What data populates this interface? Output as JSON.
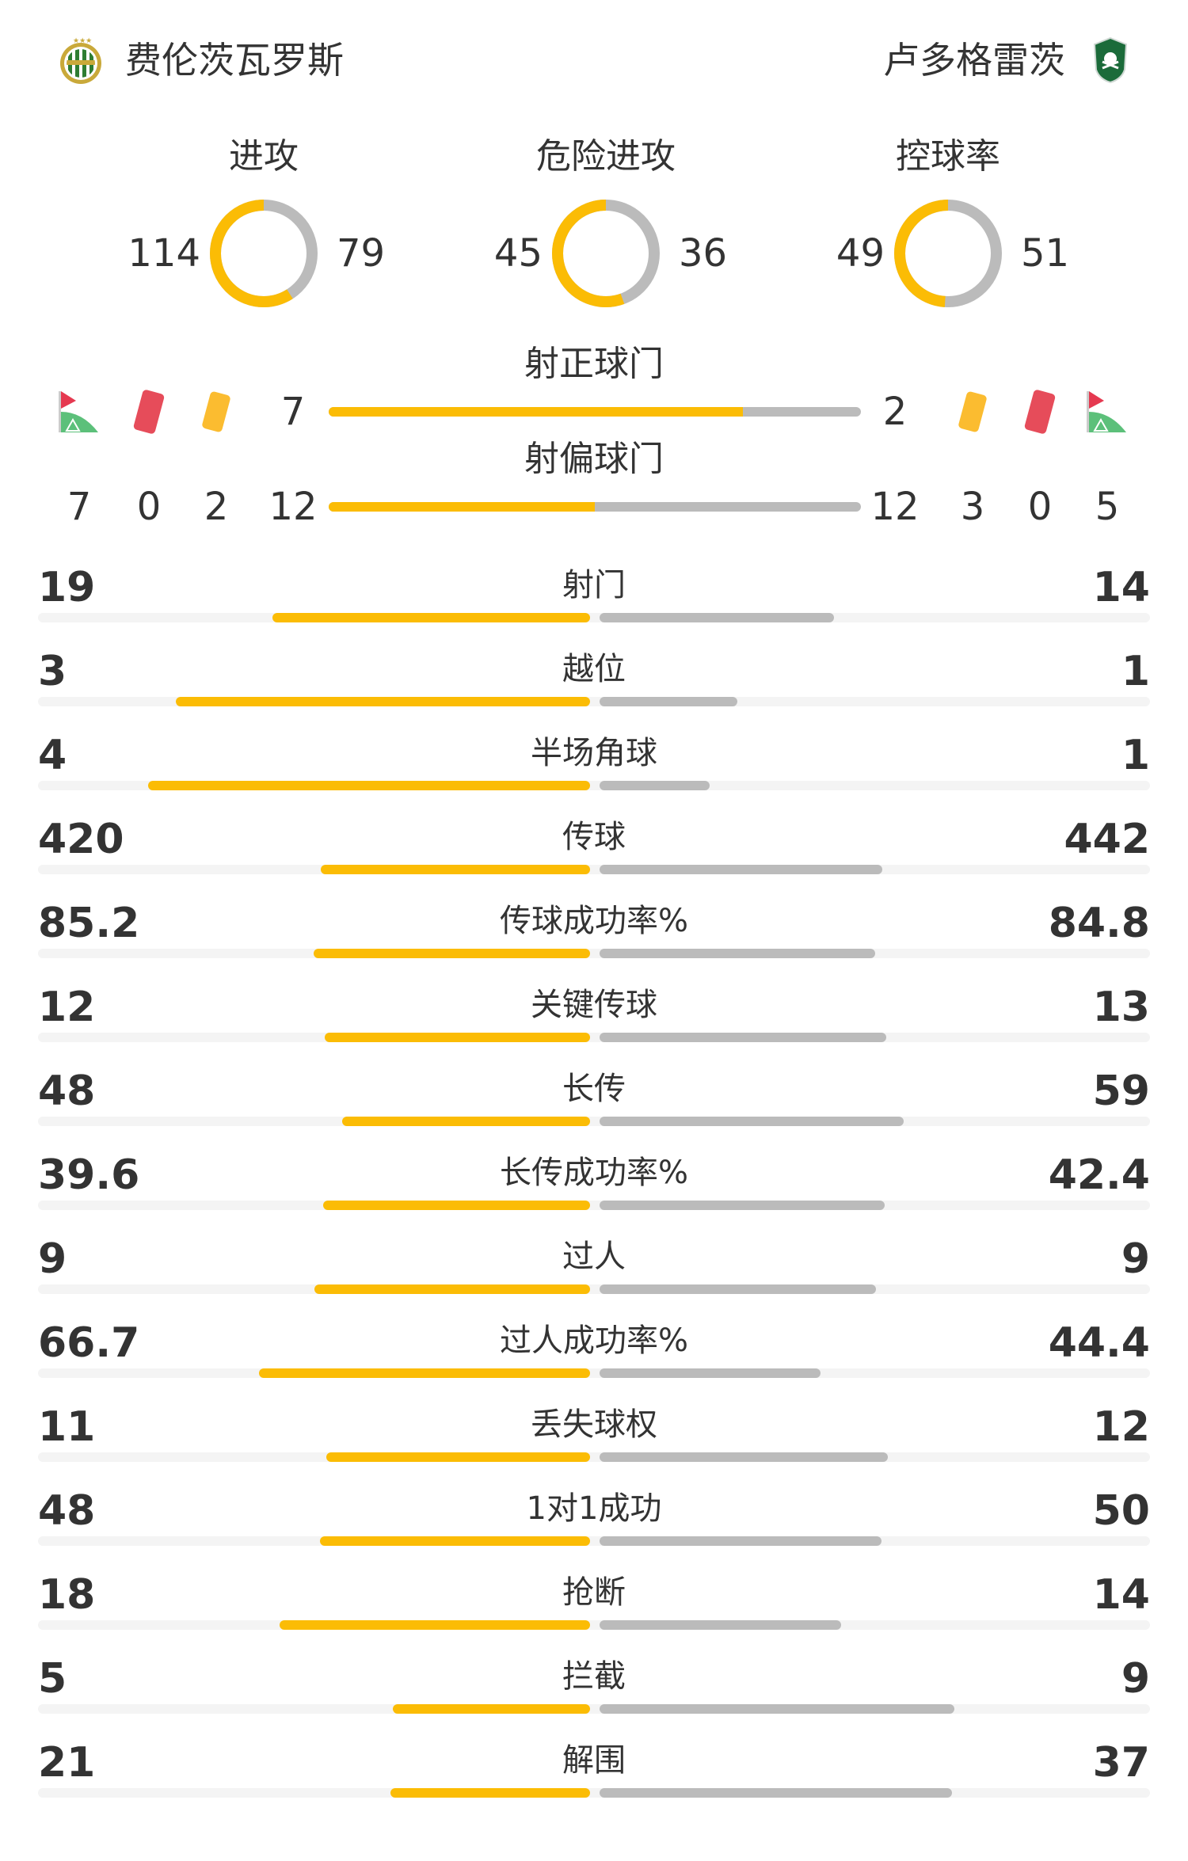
{
  "colors": {
    "home": "#fbbc05",
    "away": "#bbbbbb",
    "track": "#f4f4f4",
    "text": "#333333"
  },
  "teams": {
    "home": {
      "name": "费伦茨瓦罗斯",
      "logo": "ferencvaros-crest"
    },
    "away": {
      "name": "卢多格雷茨",
      "logo": "ludogorets-crest"
    }
  },
  "donuts": [
    {
      "title": "进攻",
      "home": 114,
      "away": 79
    },
    {
      "title": "危险进攻",
      "home": 45,
      "away": 36
    },
    {
      "title": "控球率",
      "home": 49,
      "away": 51
    }
  ],
  "shots_on_target": {
    "title": "射正球门",
    "home": 7,
    "away": 2
  },
  "shots_off_target": {
    "title": "射偏球门",
    "home": 12,
    "away": 12
  },
  "events": {
    "icons": [
      "corner-flag-icon",
      "red-card-icon",
      "yellow-card-icon"
    ],
    "home": {
      "corners": 7,
      "red_cards": 0,
      "yellow_cards": 2
    },
    "away": {
      "yellow_cards": 3,
      "red_cards": 0,
      "corners": 5
    }
  },
  "stats": [
    {
      "label": "射门",
      "home": "19",
      "away": "14"
    },
    {
      "label": "越位",
      "home": "3",
      "away": "1"
    },
    {
      "label": "半场角球",
      "home": "4",
      "away": "1"
    },
    {
      "label": "传球",
      "home": "420",
      "away": "442"
    },
    {
      "label": "传球成功率%",
      "home": "85.2",
      "away": "84.8"
    },
    {
      "label": "关键传球",
      "home": "12",
      "away": "13"
    },
    {
      "label": "长传",
      "home": "48",
      "away": "59"
    },
    {
      "label": "长传成功率%",
      "home": "39.6",
      "away": "42.4"
    },
    {
      "label": "过人",
      "home": "9",
      "away": "9"
    },
    {
      "label": "过人成功率%",
      "home": "66.7",
      "away": "44.4"
    },
    {
      "label": "丢失球权",
      "home": "11",
      "away": "12"
    },
    {
      "label": "1对1成功",
      "home": "48",
      "away": "50"
    },
    {
      "label": "抢断",
      "home": "18",
      "away": "14"
    },
    {
      "label": "拦截",
      "home": "5",
      "away": "9"
    },
    {
      "label": "解围",
      "home": "21",
      "away": "37"
    }
  ]
}
